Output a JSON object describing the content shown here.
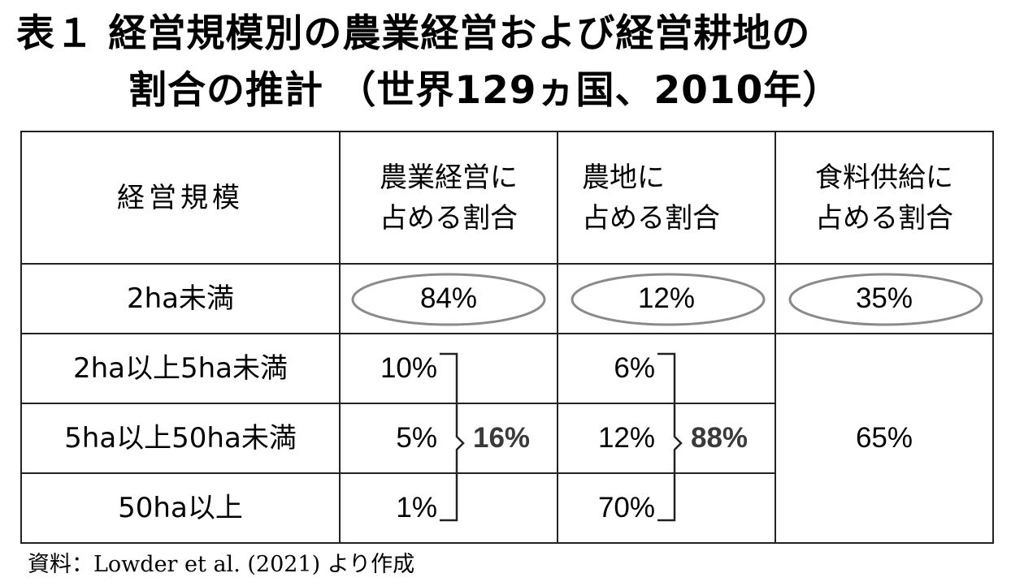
{
  "title": {
    "line1": "表１ 経営規模別の農業経営および経営耕地の",
    "line2": "割合の推計 （世界129ヵ国、2010年）"
  },
  "table": {
    "headers": {
      "size": "経営規模",
      "farms_l1": "農業経営に",
      "farms_l2": "占める割合",
      "land_l1": "農地に",
      "land_l2": "占める割合",
      "food_l1": "食料供給に",
      "food_l2": "占める割合"
    },
    "rows": [
      {
        "size": "2ha未満",
        "farms": "84%",
        "land": "12%",
        "food": "35%"
      },
      {
        "size": "2ha以上5ha未満",
        "farms": "10%",
        "land": "6%"
      },
      {
        "size": "5ha以上50ha未満",
        "farms": "5%",
        "land": "12%"
      },
      {
        "size": "50ha以上",
        "farms": "1%",
        "land": "70%"
      }
    ],
    "farms_group_total": "16%",
    "land_group_total": "88%",
    "food_group_total": "65%"
  },
  "source": "資料：Lowder et al. (2021) より作成",
  "colors": {
    "border": "#222222",
    "ellipse": "#8a8a8a",
    "group_total": "#3a3a3a"
  }
}
